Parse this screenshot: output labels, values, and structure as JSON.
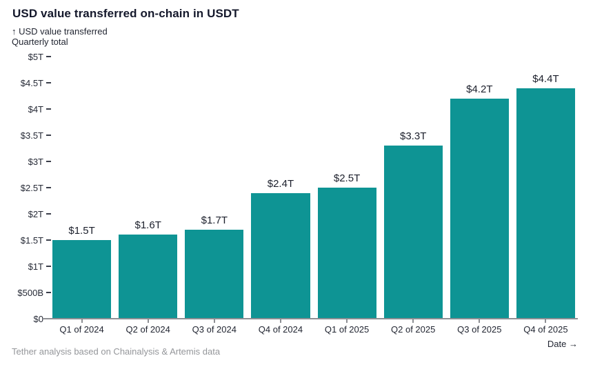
{
  "header": {
    "title": "USD value transferred on-chain in USDT",
    "y_axis_note_line1": "↑ USD value transferred",
    "y_axis_note_line2": "Quarterly total"
  },
  "chart_data": {
    "type": "bar",
    "title": "USD value transferred on-chain in USDT",
    "ylabel": "USD value transferred, quarterly total",
    "xlabel": "Date",
    "categories": [
      "Q1 of 2024",
      "Q2 of 2024",
      "Q3 of 2024",
      "Q4 of 2024",
      "Q1 of 2025",
      "Q2 of 2025",
      "Q3 of 2025",
      "Q4 of 2025"
    ],
    "values": [
      1.5,
      1.6,
      1.7,
      2.4,
      2.5,
      3.3,
      4.2,
      4.4
    ],
    "value_labels": [
      "$1.5T",
      "$1.6T",
      "$1.7T",
      "$2.4T",
      "$2.5T",
      "$3.3T",
      "$4.2T",
      "$4.4T"
    ],
    "unit": "trillions of USD",
    "ylim": [
      0,
      5
    ],
    "y_tick_values": [
      0,
      0.5,
      1,
      1.5,
      2,
      2.5,
      3,
      3.5,
      4,
      4.5,
      5
    ],
    "y_tick_labels": [
      "$0",
      "$500B",
      "$1T",
      "$1.5T",
      "$2T",
      "$2.5T",
      "$3T",
      "$3.5T",
      "$4T",
      "$4.5T",
      "$5T"
    ],
    "grid": false,
    "legend": false,
    "bar_color": "#0e9494"
  },
  "footer": {
    "source": "Tether analysis based on Chainalysis & Artemis data",
    "x_axis_hint": "Date →"
  },
  "colors": {
    "bar": "#0e9494",
    "title_text": "#14182b",
    "axis_text": "#222632",
    "axis_line": "#8d8f93",
    "source_text": "#94969a",
    "background": "#ffffff"
  }
}
